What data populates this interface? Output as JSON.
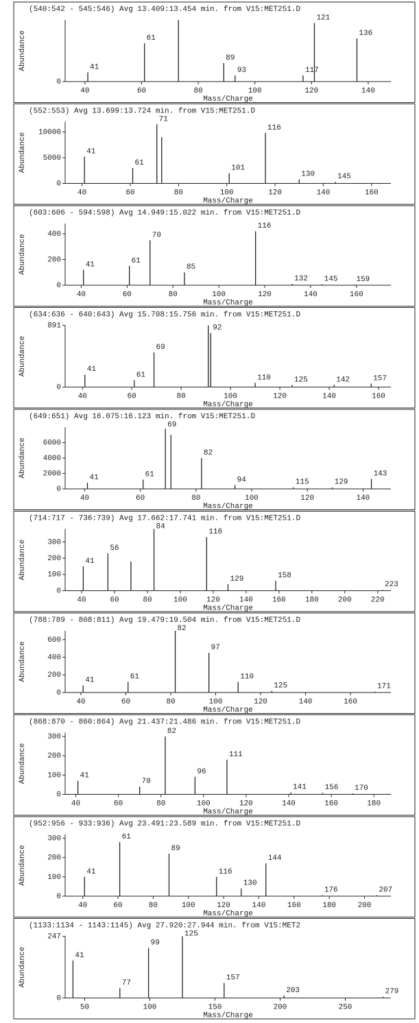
{
  "chart_data": [
    {
      "type": "spectrum",
      "title": "(540:542 - 545:546) Avg 13.409:13.454 min. from V15:MET251.D",
      "xlabel": "Mass/Charge",
      "ylabel": "Abundance",
      "xlim": [
        33,
        148
      ],
      "xticks": [
        40,
        60,
        80,
        100,
        120,
        140
      ],
      "ylim": [
        0,
        100
      ],
      "yticks": [
        0
      ],
      "x": [
        41,
        61,
        73,
        89,
        93,
        117,
        121,
        136
      ],
      "values": [
        15,
        62,
        100,
        30,
        10,
        10,
        95,
        70
      ],
      "peak_labels": [
        41,
        61,
        89,
        93,
        117,
        121,
        136
      ],
      "color": "#222"
    },
    {
      "type": "spectrum",
      "title": "(552:553) Avg 13.699:13.724 min. from V15:MET251.D",
      "xlabel": "Mass/Charge",
      "ylabel": "Abundance",
      "xlim": [
        33,
        168
      ],
      "xticks": [
        40,
        60,
        80,
        100,
        120,
        140,
        160
      ],
      "ylim": [
        0,
        12000
      ],
      "yticks": [
        0,
        5000,
        10000
      ],
      "x": [
        41,
        61,
        71,
        73,
        101,
        116,
        130,
        145
      ],
      "values": [
        5200,
        3000,
        11500,
        9000,
        2000,
        9800,
        800,
        300
      ],
      "peak_labels": [
        41,
        61,
        71,
        101,
        116,
        130,
        145
      ],
      "color": "#222"
    },
    {
      "type": "spectrum",
      "title": "(603:606 - 594:598) Avg 14.949:15.022 min. from V15:MET251.D",
      "xlabel": "Mass/Charge",
      "ylabel": "Abundance",
      "xlim": [
        33,
        175
      ],
      "xticks": [
        40,
        60,
        80,
        100,
        120,
        140,
        160
      ],
      "ylim": [
        0,
        480
      ],
      "yticks": [
        0,
        200,
        400
      ],
      "x": [
        41,
        61,
        70,
        85,
        116,
        132,
        145,
        159
      ],
      "values": [
        120,
        150,
        350,
        100,
        420,
        10,
        8,
        5
      ],
      "peak_labels": [
        41,
        61,
        70,
        85,
        116,
        132,
        145,
        159
      ],
      "color": "#222"
    },
    {
      "type": "spectrum",
      "title": "(634:636 - 640:643) Avg 15.708:15.756 min. from V15:MET251.D",
      "xlabel": "Mass/Charge",
      "ylabel": "Abundance",
      "xlim": [
        33,
        165
      ],
      "xticks": [
        40,
        60,
        80,
        100,
        120,
        140,
        160
      ],
      "ylim": [
        0,
        891
      ],
      "yticks": [
        0,
        891
      ],
      "x": [
        41,
        61,
        69,
        91,
        92,
        110,
        125,
        142,
        157
      ],
      "values": [
        180,
        100,
        500,
        891,
        780,
        60,
        30,
        30,
        50
      ],
      "peak_labels": [
        41,
        61,
        69,
        92,
        110,
        125,
        142,
        157
      ],
      "color": "#222"
    },
    {
      "type": "spectrum",
      "title": "(649:651) Avg 16.075:16.123 min. from V15:MET251.D",
      "xlabel": "Mass/Charge",
      "ylabel": "Abundance",
      "xlim": [
        33,
        150
      ],
      "xticks": [
        40,
        60,
        80,
        100,
        120,
        140
      ],
      "ylim": [
        0,
        8000
      ],
      "yticks": [
        0,
        2000,
        4000,
        6000
      ],
      "x": [
        41,
        61,
        69,
        71,
        82,
        94,
        115,
        129,
        143
      ],
      "values": [
        800,
        1200,
        7800,
        7000,
        4000,
        500,
        200,
        200,
        1300
      ],
      "peak_labels": [
        41,
        61,
        69,
        82,
        94,
        115,
        129,
        143
      ],
      "color": "#222"
    },
    {
      "type": "spectrum",
      "title": "(714:717 - 736:739) Avg 17.662:17.741 min. from V15:MET251.D",
      "xlabel": "Mass/Charge",
      "ylabel": "Abundance",
      "xlim": [
        30,
        228
      ],
      "xticks": [
        40,
        60,
        80,
        100,
        120,
        140,
        160,
        180,
        200,
        220
      ],
      "ylim": [
        0,
        380
      ],
      "yticks": [
        0,
        100,
        200,
        300
      ],
      "x": [
        41,
        56,
        70,
        84,
        116,
        129,
        158,
        223
      ],
      "values": [
        150,
        230,
        180,
        380,
        330,
        40,
        60,
        5
      ],
      "peak_labels": [
        41,
        56,
        84,
        116,
        129,
        158,
        223
      ],
      "color": "#222"
    },
    {
      "type": "spectrum",
      "title": "(788:789 - 808:811) Avg 19.479:19.504 min. from V15:MET251.D",
      "xlabel": "Mass/Charge",
      "ylabel": "Abundance",
      "xlim": [
        33,
        178
      ],
      "xticks": [
        40,
        60,
        80,
        100,
        120,
        140,
        160
      ],
      "ylim": [
        0,
        700
      ],
      "yticks": [
        0,
        200,
        400,
        600
      ],
      "x": [
        41,
        61,
        82,
        97,
        110,
        125,
        171
      ],
      "values": [
        80,
        120,
        700,
        450,
        120,
        20,
        10
      ],
      "peak_labels": [
        41,
        61,
        82,
        97,
        110,
        125,
        171
      ],
      "color": "#222"
    },
    {
      "type": "spectrum",
      "title": "(868:870 - 860:864) Avg 21.437:21.486 min. from V15:MET251.D",
      "xlabel": "Mass/Charge",
      "ylabel": "Abundance",
      "xlim": [
        35,
        188
      ],
      "xticks": [
        40,
        60,
        80,
        100,
        120,
        140,
        160,
        180
      ],
      "ylim": [
        0,
        320
      ],
      "yticks": [
        0,
        100,
        200,
        300
      ],
      "x": [
        41,
        70,
        82,
        96,
        111,
        141,
        156,
        170
      ],
      "values": [
        70,
        40,
        300,
        90,
        180,
        10,
        8,
        5
      ],
      "peak_labels": [
        41,
        70,
        82,
        96,
        111,
        141,
        156,
        170
      ],
      "color": "#222"
    },
    {
      "type": "spectrum",
      "title": "(952:956 - 933:936) Avg 23.491:23.589 min. from V15:MET251.D",
      "xlabel": "Mass/Charge",
      "ylabel": "Abundance",
      "xlim": [
        30,
        215
      ],
      "xticks": [
        40,
        60,
        80,
        100,
        120,
        140,
        160,
        180,
        200
      ],
      "ylim": [
        0,
        320
      ],
      "yticks": [
        0,
        100,
        200,
        300
      ],
      "x": [
        41,
        61,
        89,
        116,
        130,
        144,
        176,
        207
      ],
      "values": [
        100,
        280,
        220,
        100,
        40,
        170,
        5,
        5
      ],
      "peak_labels": [
        41,
        61,
        89,
        116,
        130,
        144,
        176,
        207
      ],
      "color": "#222"
    },
    {
      "type": "spectrum",
      "title": "(1133:1134 - 1143:1145) Avg 27.920:27.944 min. from V15:MET2",
      "xlabel": "Mass/Charge",
      "ylabel": "Abundance",
      "xlim": [
        35,
        285
      ],
      "xticks": [
        50,
        100,
        150,
        200,
        250
      ],
      "ylim": [
        0,
        247
      ],
      "yticks": [
        0,
        247
      ],
      "x": [
        41,
        77,
        99,
        125,
        157,
        203,
        279
      ],
      "values": [
        150,
        40,
        200,
        247,
        60,
        10,
        5
      ],
      "peak_labels": [
        41,
        77,
        99,
        125,
        157,
        203,
        279
      ],
      "color": "#222"
    }
  ]
}
